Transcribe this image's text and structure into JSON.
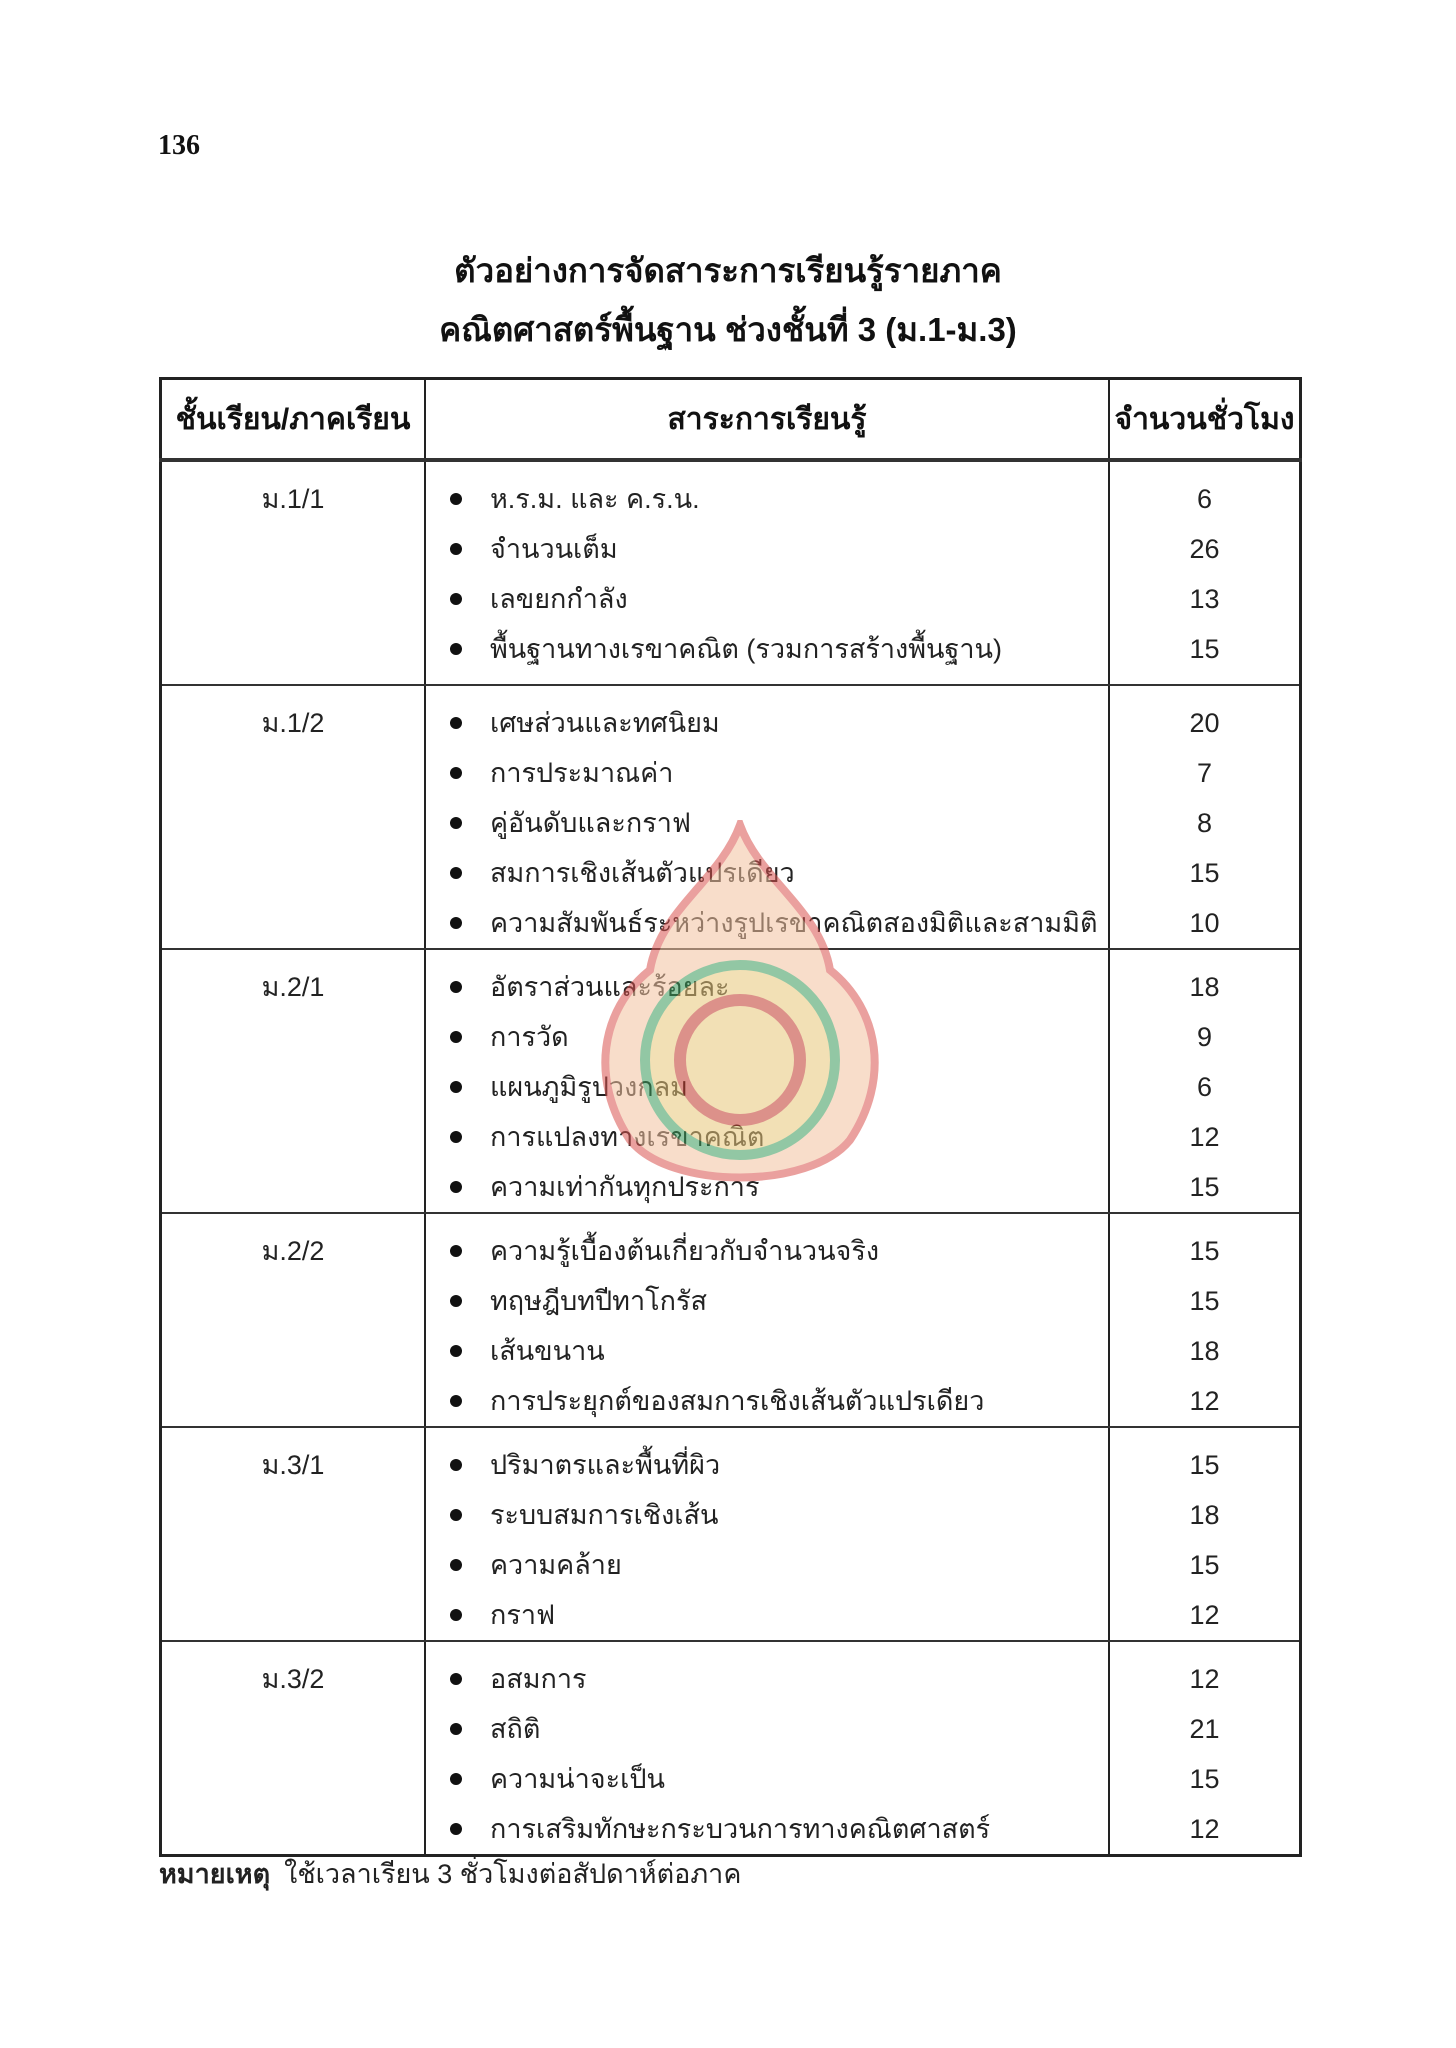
{
  "page_number": "136",
  "title_line1": "ตัวอย่างการจัดสาระการเรียนรู้รายภาค",
  "title_line2": "คณิตศาสตร์พื้นฐาน ช่วงชั้นที่ 3 (ม.1-ม.3)",
  "table": {
    "headers": [
      "ชั้นเรียน/ภาคเรียน",
      "สาระการเรียนรู้",
      "จำนวนชั่วโมง"
    ],
    "sections": [
      {
        "grade": "ม.1/1",
        "items": [
          {
            "topic": "ห.ร.ม. และ ค.ร.น.",
            "hours": "6"
          },
          {
            "topic": "จำนวนเต็ม",
            "hours": "26"
          },
          {
            "topic": "เลขยกกำลัง",
            "hours": "13"
          },
          {
            "topic": "พื้นฐานทางเรขาคณิต (รวมการสร้างพื้นฐาน)",
            "hours": "15"
          }
        ]
      },
      {
        "grade": "ม.1/2",
        "items": [
          {
            "topic": "เศษส่วนและทศนิยม",
            "hours": "20"
          },
          {
            "topic": "การประมาณค่า",
            "hours": "7"
          },
          {
            "topic": "คู่อันดับและกราฟ",
            "hours": "8"
          },
          {
            "topic": "สมการเชิงเส้นตัวแปรเดียว",
            "hours": "15"
          },
          {
            "topic": "ความสัมพันธ์ระหว่างรูปเรขาคณิตสองมิติและสามมิติ",
            "hours": "10"
          }
        ]
      },
      {
        "grade": "ม.2/1",
        "items": [
          {
            "topic": "อัตราส่วนและร้อยละ",
            "hours": "18"
          },
          {
            "topic": "การวัด",
            "hours": "9"
          },
          {
            "topic": "แผนภูมิรูปวงกลม",
            "hours": "6"
          },
          {
            "topic": "การแปลงทางเรขาคณิต",
            "hours": "12"
          },
          {
            "topic": "ความเท่ากันทุกประการ",
            "hours": "15"
          }
        ]
      },
      {
        "grade": "ม.2/2",
        "items": [
          {
            "topic": "ความรู้เบื้องต้นเกี่ยวกับจำนวนจริง",
            "hours": "15"
          },
          {
            "topic": "ทฤษฎีบทปีทาโกรัส",
            "hours": "15"
          },
          {
            "topic": "เส้นขนาน",
            "hours": "18"
          },
          {
            "topic": "การประยุกต์ของสมการเชิงเส้นตัวแปรเดียว",
            "hours": "12"
          }
        ]
      },
      {
        "grade": "ม.3/1",
        "items": [
          {
            "topic": "ปริมาตรและพื้นที่ผิว",
            "hours": "15"
          },
          {
            "topic": "ระบบสมการเชิงเส้น",
            "hours": "18"
          },
          {
            "topic": "ความคล้าย",
            "hours": "15"
          },
          {
            "topic": "กราฟ",
            "hours": "12"
          }
        ]
      },
      {
        "grade": "ม.3/2",
        "items": [
          {
            "topic": "อสมการ",
            "hours": "12"
          },
          {
            "topic": "สถิติ",
            "hours": "21"
          },
          {
            "topic": "ความน่าจะเป็น",
            "hours": "15"
          },
          {
            "topic": "การเสริมทักษะกระบวนการทางคณิตศาสตร์",
            "hours": "12"
          }
        ]
      }
    ]
  },
  "note": {
    "label": "หมายเหตุ",
    "text": "ใช้เวลาเรียน 3 ชั่วโมงต่อสัปดาห์ต่อภาค"
  },
  "watermark": {
    "icon": "ministry-of-education-seal",
    "colors": [
      "#d9534f",
      "#e8b923",
      "#3a9a5a"
    ]
  }
}
